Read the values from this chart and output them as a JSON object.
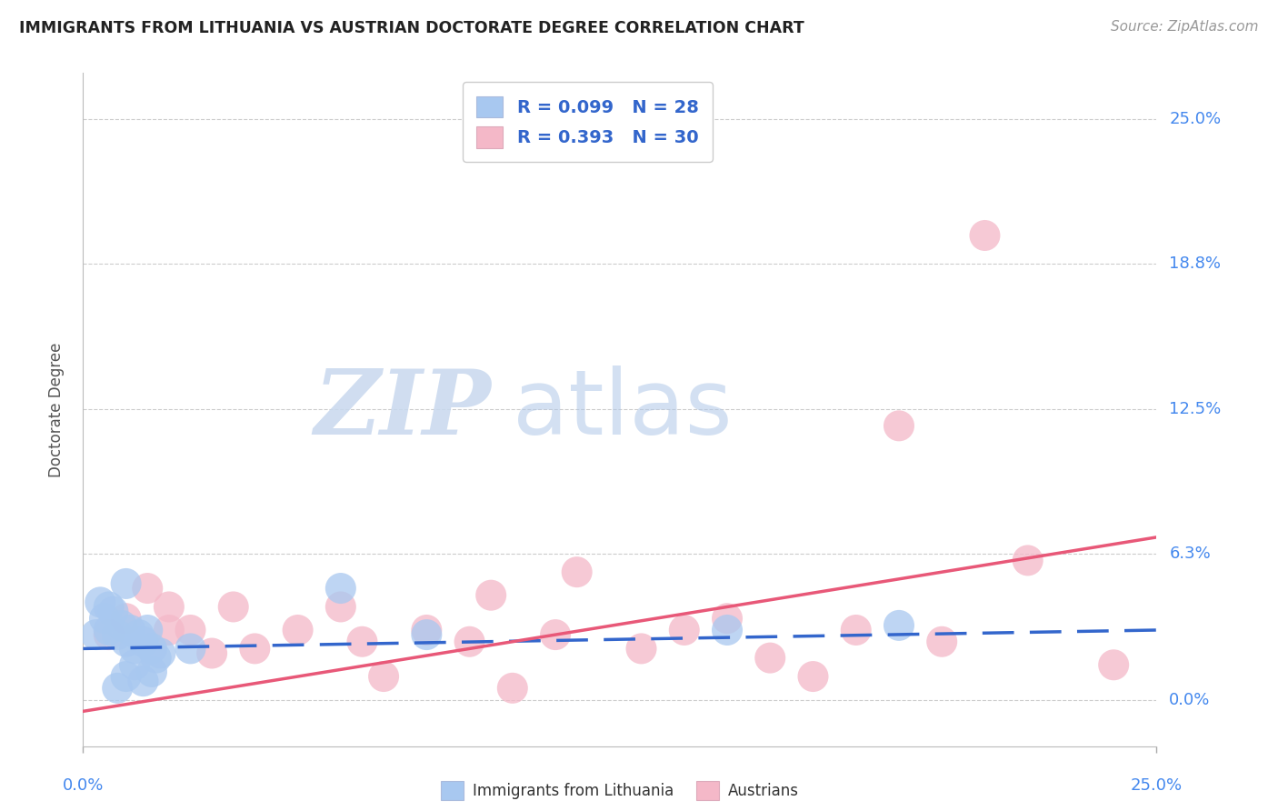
{
  "title": "IMMIGRANTS FROM LITHUANIA VS AUSTRIAN DOCTORATE DEGREE CORRELATION CHART",
  "source": "Source: ZipAtlas.com",
  "ylabel": "Doctorate Degree",
  "xlim": [
    0.0,
    0.25
  ],
  "ylim": [
    -0.02,
    0.27
  ],
  "ytick_labels": [
    "0.0%",
    "6.3%",
    "12.5%",
    "18.8%",
    "25.0%"
  ],
  "ytick_values": [
    0.0,
    0.063,
    0.125,
    0.188,
    0.25
  ],
  "xtick_labels": [
    "0.0%",
    "25.0%"
  ],
  "xtick_values": [
    0.0,
    0.25
  ],
  "watermark_zip": "ZIP",
  "watermark_atlas": "atlas",
  "legend_blue_R": "0.099",
  "legend_blue_N": "28",
  "legend_pink_R": "0.393",
  "legend_pink_N": "30",
  "blue_scatter_color": "#a8c8f0",
  "pink_scatter_color": "#f4b8c8",
  "blue_line_color": "#3366cc",
  "pink_line_color": "#e85878",
  "grid_color": "#cccccc",
  "right_label_color": "#4488ee",
  "blue_scatter_x": [
    0.003,
    0.005,
    0.006,
    0.007,
    0.008,
    0.009,
    0.01,
    0.011,
    0.012,
    0.013,
    0.014,
    0.015,
    0.016,
    0.017,
    0.018,
    0.004,
    0.006,
    0.008,
    0.01,
    0.012,
    0.014,
    0.016,
    0.025,
    0.06,
    0.08,
    0.15,
    0.19,
    0.01
  ],
  "blue_scatter_y": [
    0.028,
    0.035,
    0.03,
    0.038,
    0.028,
    0.032,
    0.025,
    0.03,
    0.022,
    0.028,
    0.025,
    0.03,
    0.022,
    0.018,
    0.02,
    0.042,
    0.04,
    0.005,
    0.01,
    0.015,
    0.008,
    0.012,
    0.022,
    0.048,
    0.028,
    0.03,
    0.032,
    0.05
  ],
  "pink_scatter_x": [
    0.006,
    0.01,
    0.015,
    0.02,
    0.03,
    0.035,
    0.04,
    0.05,
    0.06,
    0.065,
    0.07,
    0.08,
    0.09,
    0.095,
    0.1,
    0.11,
    0.115,
    0.13,
    0.14,
    0.15,
    0.16,
    0.17,
    0.18,
    0.19,
    0.2,
    0.21,
    0.22,
    0.02,
    0.025,
    0.24
  ],
  "pink_scatter_y": [
    0.028,
    0.035,
    0.048,
    0.03,
    0.02,
    0.04,
    0.022,
    0.03,
    0.04,
    0.025,
    0.01,
    0.03,
    0.025,
    0.045,
    0.005,
    0.028,
    0.055,
    0.022,
    0.03,
    0.035,
    0.018,
    0.01,
    0.03,
    0.118,
    0.025,
    0.2,
    0.06,
    0.04,
    0.03,
    0.015
  ],
  "blue_line_x": [
    0.0,
    0.25
  ],
  "blue_line_y": [
    0.022,
    0.03
  ],
  "pink_line_x": [
    0.0,
    0.25
  ],
  "pink_line_y": [
    -0.005,
    0.07
  ],
  "background_color": "#ffffff"
}
